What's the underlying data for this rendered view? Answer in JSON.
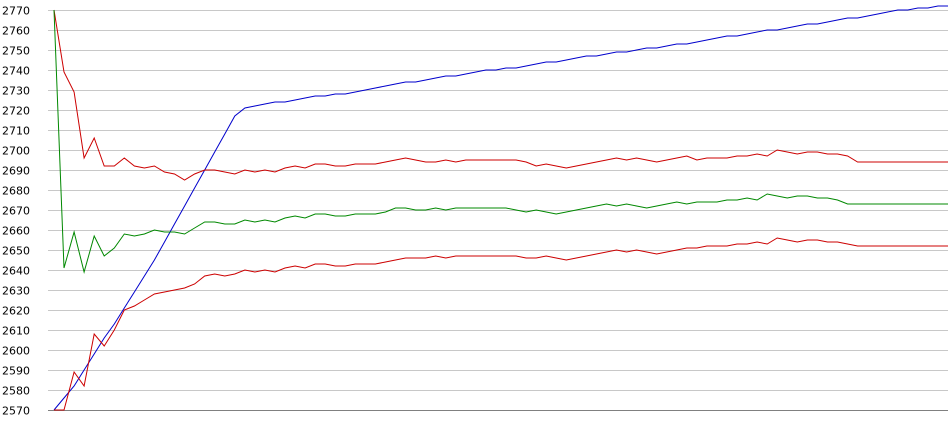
{
  "chart_data": {
    "type": "line",
    "title": "",
    "xlabel": "",
    "ylabel": "",
    "ylim": [
      2570,
      2770
    ],
    "yticks": [
      2570,
      2580,
      2590,
      2600,
      2610,
      2620,
      2630,
      2640,
      2650,
      2660,
      2670,
      2680,
      2690,
      2700,
      2710,
      2720,
      2730,
      2740,
      2750,
      2760,
      2770
    ],
    "xlim": [
      0,
      89
    ],
    "grid": true,
    "legend": "none",
    "x": [
      0,
      1,
      2,
      3,
      4,
      5,
      6,
      7,
      8,
      9,
      10,
      11,
      12,
      13,
      14,
      15,
      16,
      17,
      18,
      19,
      20,
      21,
      22,
      23,
      24,
      25,
      26,
      27,
      28,
      29,
      30,
      31,
      32,
      33,
      34,
      35,
      36,
      37,
      38,
      39,
      40,
      41,
      42,
      43,
      44,
      45,
      46,
      47,
      48,
      49,
      50,
      51,
      52,
      53,
      54,
      55,
      56,
      57,
      58,
      59,
      60,
      61,
      62,
      63,
      64,
      65,
      66,
      67,
      68,
      69,
      70,
      71,
      72,
      73,
      74,
      75,
      76,
      77,
      78,
      79,
      80,
      81,
      82,
      83,
      84,
      85,
      86,
      87,
      88,
      89
    ],
    "series": [
      {
        "color": "#0000cc",
        "values": [
          2570,
          2576,
          2582,
          2590,
          2598,
          2606,
          2613,
          2621,
          2629,
          2637,
          2645,
          2654,
          2663,
          2672,
          2681,
          2690,
          2699,
          2708,
          2717,
          2721,
          2722,
          2723,
          2724,
          2724,
          2725,
          2726,
          2727,
          2727,
          2728,
          2728,
          2729,
          2730,
          2731,
          2732,
          2733,
          2734,
          2734,
          2735,
          2736,
          2737,
          2737,
          2738,
          2739,
          2740,
          2740,
          2741,
          2741,
          2742,
          2743,
          2744,
          2744,
          2745,
          2746,
          2747,
          2747,
          2748,
          2749,
          2749,
          2750,
          2751,
          2751,
          2752,
          2753,
          2753,
          2754,
          2755,
          2756,
          2757,
          2757,
          2758,
          2759,
          2760,
          2760,
          2761,
          2762,
          2763,
          2763,
          2764,
          2765,
          2766,
          2766,
          2767,
          2768,
          2769,
          2770,
          2770,
          2771,
          2771,
          2772,
          2772
        ]
      },
      {
        "color": "#cc0000",
        "values": [
          2770,
          2739,
          2729,
          2696,
          2706,
          2692,
          2692,
          2696,
          2692,
          2691,
          2692,
          2689,
          2688,
          2685,
          2688,
          2690,
          2690,
          2689,
          2688,
          2690,
          2689,
          2690,
          2689,
          2691,
          2692,
          2691,
          2693,
          2693,
          2692,
          2692,
          2693,
          2693,
          2693,
          2694,
          2695,
          2696,
          2695,
          2694,
          2694,
          2695,
          2694,
          2695,
          2695,
          2695,
          2695,
          2695,
          2695,
          2694,
          2692,
          2693,
          2692,
          2691,
          2692,
          2693,
          2694,
          2695,
          2696,
          2695,
          2696,
          2695,
          2694,
          2695,
          2696,
          2697,
          2695,
          2696,
          2696,
          2696,
          2697,
          2697,
          2698,
          2697,
          2700,
          2699,
          2698,
          2699,
          2699,
          2698,
          2698,
          2697,
          2694,
          2694,
          2694,
          2694,
          2694,
          2694,
          2694,
          2694,
          2694,
          2694
        ]
      },
      {
        "color": "#008800",
        "values": [
          2770,
          2641,
          2659,
          2639,
          2657,
          2647,
          2651,
          2658,
          2657,
          2658,
          2660,
          2659,
          2659,
          2658,
          2661,
          2664,
          2664,
          2663,
          2663,
          2665,
          2664,
          2665,
          2664,
          2666,
          2667,
          2666,
          2668,
          2668,
          2667,
          2667,
          2668,
          2668,
          2668,
          2669,
          2671,
          2671,
          2670,
          2670,
          2671,
          2670,
          2671,
          2671,
          2671,
          2671,
          2671,
          2671,
          2670,
          2669,
          2670,
          2669,
          2668,
          2669,
          2670,
          2671,
          2672,
          2673,
          2672,
          2673,
          2672,
          2671,
          2672,
          2673,
          2674,
          2673,
          2674,
          2674,
          2674,
          2675,
          2675,
          2676,
          2675,
          2678,
          2677,
          2676,
          2677,
          2677,
          2676,
          2676,
          2675,
          2673,
          2673,
          2673,
          2673,
          2673,
          2673,
          2673,
          2673,
          2673,
          2673,
          2673
        ]
      },
      {
        "color": "#cc0000",
        "values": [
          2570,
          2570,
          2589,
          2582,
          2608,
          2602,
          2610,
          2620,
          2622,
          2625,
          2628,
          2629,
          2630,
          2631,
          2633,
          2637,
          2638,
          2637,
          2638,
          2640,
          2639,
          2640,
          2639,
          2641,
          2642,
          2641,
          2643,
          2643,
          2642,
          2642,
          2643,
          2643,
          2643,
          2644,
          2645,
          2646,
          2646,
          2646,
          2647,
          2646,
          2647,
          2647,
          2647,
          2647,
          2647,
          2647,
          2647,
          2646,
          2646,
          2647,
          2646,
          2645,
          2646,
          2647,
          2648,
          2649,
          2650,
          2649,
          2650,
          2649,
          2648,
          2649,
          2650,
          2651,
          2651,
          2652,
          2652,
          2652,
          2653,
          2653,
          2654,
          2653,
          2656,
          2655,
          2654,
          2655,
          2655,
          2654,
          2654,
          2653,
          2652,
          2652,
          2652,
          2652,
          2652,
          2652,
          2652,
          2652,
          2652,
          2652
        ]
      }
    ]
  }
}
